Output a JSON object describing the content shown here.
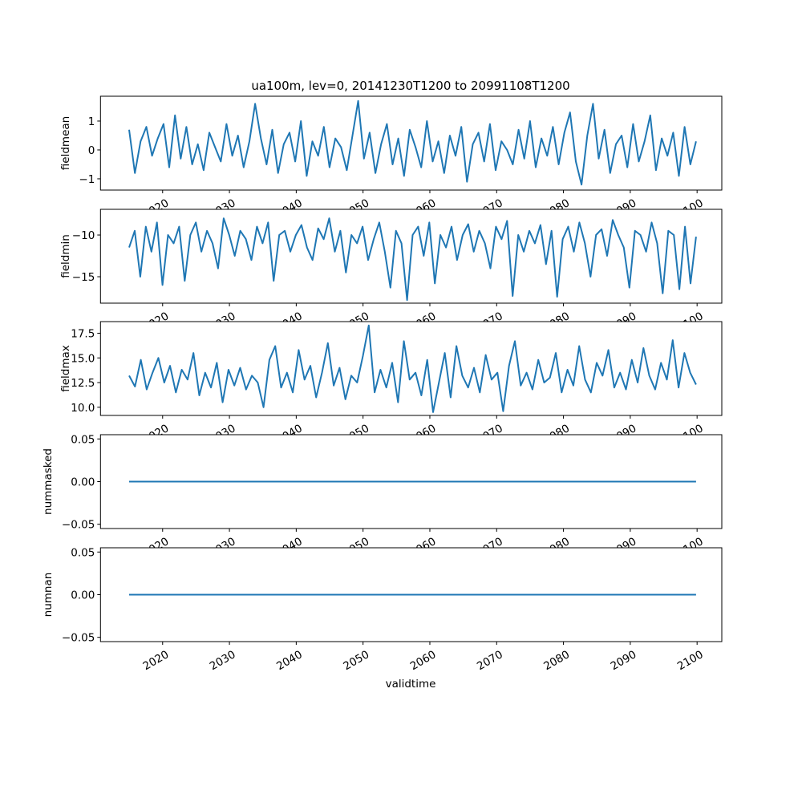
{
  "chart_data": {
    "type": "line",
    "title": "ua100m, lev=0, 20141230T1200 to 20991108T1200",
    "xlabel": "validtime",
    "x_start_year": 2014.99,
    "x_end_year": 2099.85,
    "xlim": [
      2010.7,
      2103.7
    ],
    "xticks": [
      2020,
      2030,
      2040,
      2050,
      2060,
      2070,
      2080,
      2090,
      2100
    ],
    "xtick_labels": [
      "2020",
      "2030",
      "2040",
      "2050",
      "2060",
      "2070",
      "2080",
      "2090",
      "2100"
    ],
    "line_color": "#1f77b4",
    "panels": [
      {
        "ylabel": "fieldmean",
        "ylim": [
          -1.39,
          1.86
        ],
        "yticks": [
          1,
          0,
          -1
        ],
        "ytick_labels": [
          "1",
          "0",
          "−1"
        ],
        "values": [
          0.7,
          -0.8,
          0.3,
          0.8,
          -0.2,
          0.4,
          0.9,
          -0.6,
          1.2,
          -0.3,
          0.8,
          -0.5,
          0.2,
          -0.7,
          0.6,
          0.1,
          -0.4,
          0.9,
          -0.2,
          0.5,
          -0.6,
          0.3,
          1.6,
          0.4,
          -0.5,
          0.7,
          -0.8,
          0.2,
          0.6,
          -0.4,
          1.0,
          -0.9,
          0.3,
          -0.2,
          0.8,
          -0.6,
          0.4,
          0.1,
          -0.7,
          0.5,
          1.7,
          -0.3,
          0.6,
          -0.8,
          0.2,
          0.9,
          -0.5,
          0.4,
          -0.9,
          0.7,
          0.1,
          -0.6,
          1.0,
          -0.4,
          0.3,
          -0.8,
          0.5,
          -0.2,
          0.8,
          -1.1,
          0.2,
          0.6,
          -0.4,
          0.9,
          -0.7,
          0.3,
          0.0,
          -0.5,
          0.7,
          -0.3,
          1.0,
          -0.6,
          0.4,
          -0.2,
          0.8,
          -0.5,
          0.6,
          1.3,
          -0.4,
          -1.2,
          0.5,
          1.6,
          -0.3,
          0.7,
          -0.8,
          0.2,
          0.5,
          -0.6,
          0.9,
          -0.4,
          0.3,
          1.2,
          -0.7,
          0.4,
          -0.2,
          0.6,
          -0.9,
          0.8,
          -0.5,
          0.3
        ]
      },
      {
        "ylabel": "fieldmin",
        "ylim": [
          -18.17,
          -6.92
        ],
        "yticks": [
          -10,
          -15
        ],
        "ytick_labels": [
          "−10",
          "−15"
        ],
        "values": [
          -11.5,
          -9.5,
          -15,
          -9,
          -12,
          -8.5,
          -16,
          -10,
          -11,
          -9,
          -15.5,
          -10,
          -8.5,
          -12,
          -9.5,
          -11,
          -14,
          -8,
          -10,
          -12.5,
          -9.5,
          -10.5,
          -13,
          -9,
          -11,
          -8.5,
          -15.5,
          -10,
          -9.5,
          -12,
          -10,
          -8.8,
          -11.5,
          -13,
          -9.2,
          -10.5,
          -8,
          -12,
          -9.5,
          -14.5,
          -10,
          -11,
          -9,
          -13,
          -10.5,
          -8.5,
          -12,
          -16.3,
          -9.5,
          -11,
          -17.8,
          -10,
          -9,
          -12.5,
          -8.5,
          -15.8,
          -10,
          -11.5,
          -9,
          -13,
          -10,
          -8.7,
          -12,
          -9.5,
          -11,
          -14,
          -9,
          -10.5,
          -8.3,
          -17.3,
          -10,
          -12,
          -9.5,
          -11,
          -8.8,
          -13.5,
          -9.5,
          -17.4,
          -10.5,
          -9,
          -12,
          -8.5,
          -11,
          -15,
          -10,
          -9.3,
          -12.5,
          -8.2,
          -10,
          -11.5,
          -16.3,
          -9.5,
          -10,
          -12,
          -8.5,
          -11,
          -17,
          -9.5,
          -10,
          -16.5,
          -9,
          -15.8,
          -10.2
        ]
      },
      {
        "ylabel": "fieldmax",
        "ylim": [
          9.17,
          18.68
        ],
        "yticks": [
          17.5,
          15.0,
          12.5,
          10.0
        ],
        "ytick_labels": [
          "17.5",
          "15.0",
          "12.5",
          "10.0"
        ],
        "values": [
          13.2,
          12.1,
          14.8,
          11.8,
          13.5,
          15,
          12.5,
          14.2,
          11.5,
          13.8,
          12.8,
          15.5,
          11.2,
          13.5,
          12,
          14.5,
          10.5,
          13.8,
          12.2,
          14,
          11.8,
          13.2,
          12.5,
          10.0,
          14.8,
          16.2,
          12,
          13.5,
          11.5,
          15.8,
          12.8,
          14.2,
          11,
          13.5,
          16.5,
          12.2,
          14,
          10.8,
          13.2,
          12.5,
          15.2,
          18.3,
          11.5,
          13.8,
          12,
          14.5,
          10.5,
          16.7,
          12.8,
          13.5,
          11.2,
          14.8,
          9.5,
          12.5,
          15.5,
          11,
          16.2,
          13.2,
          12,
          14,
          11.5,
          15.3,
          12.8,
          13.5,
          9.6,
          14.2,
          16.7,
          12.2,
          13.5,
          11.8,
          14.8,
          12.5,
          13,
          15.5,
          11.5,
          13.8,
          12.2,
          16.2,
          12.8,
          11.5,
          14.5,
          13.2,
          15.8,
          12,
          13.5,
          11.8,
          14.8,
          12.5,
          16,
          13.2,
          11.8,
          14.5,
          12.8,
          16.8,
          12,
          15.5,
          13.5,
          12.3
        ]
      },
      {
        "ylabel": "nummasked",
        "ylim": [
          -0.055,
          0.055
        ],
        "yticks": [
          0.05,
          0.0,
          -0.05
        ],
        "ytick_labels": [
          "0.05",
          "0.00",
          "−0.05"
        ],
        "values": [
          0,
          0
        ]
      },
      {
        "ylabel": "numnan",
        "ylim": [
          -0.055,
          0.055
        ],
        "yticks": [
          0.05,
          0.0,
          -0.05
        ],
        "ytick_labels": [
          "0.05",
          "0.00",
          "−0.05"
        ],
        "values": [
          0,
          0
        ]
      }
    ]
  }
}
